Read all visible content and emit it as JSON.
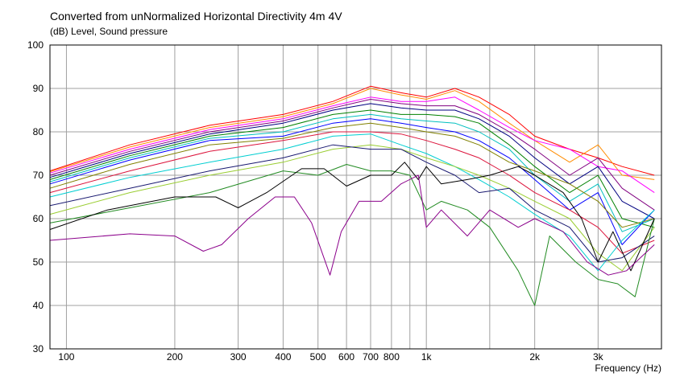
{
  "chart_data": {
    "type": "line",
    "title": "Converted from unNormalized Horizontal Directivity 4m 4V",
    "ylabel": "(dB)  Level, Sound pressure",
    "xlabel": "Frequency  (Hz)",
    "x_scale": "log",
    "xlim": [
      90,
      4500
    ],
    "ylim": [
      30,
      100
    ],
    "grid": true,
    "x_ticks": [
      {
        "value": 100,
        "label": "100"
      },
      {
        "value": 200,
        "label": "200"
      },
      {
        "value": 300,
        "label": "300"
      },
      {
        "value": 400,
        "label": "400"
      },
      {
        "value": 500,
        "label": "500"
      },
      {
        "value": 600,
        "label": "600"
      },
      {
        "value": 700,
        "label": "700"
      },
      {
        "value": 800,
        "label": "800"
      },
      {
        "value": 1000,
        "label": "1k"
      },
      {
        "value": 2000,
        "label": "2k"
      },
      {
        "value": 3000,
        "label": "3k"
      }
    ],
    "x_minor_grid": [
      900,
      1500
    ],
    "y_ticks": [
      30,
      40,
      50,
      60,
      70,
      80,
      90,
      100
    ],
    "series": [
      {
        "color": "#ff0000",
        "points": [
          [
            90,
            71
          ],
          [
            150,
            77
          ],
          [
            250,
            81.5
          ],
          [
            400,
            84
          ],
          [
            550,
            87
          ],
          [
            700,
            90.5
          ],
          [
            850,
            89
          ],
          [
            1000,
            88
          ],
          [
            1200,
            90
          ],
          [
            1400,
            88
          ],
          [
            1700,
            84
          ],
          [
            2000,
            79
          ],
          [
            2500,
            76
          ],
          [
            3000,
            74
          ],
          [
            3500,
            72
          ],
          [
            4300,
            70
          ]
        ]
      },
      {
        "color": "#ff8c00",
        "points": [
          [
            90,
            70.8
          ],
          [
            150,
            76.5
          ],
          [
            250,
            81
          ],
          [
            400,
            83.5
          ],
          [
            550,
            86.5
          ],
          [
            700,
            90
          ],
          [
            850,
            88.5
          ],
          [
            1000,
            87.5
          ],
          [
            1200,
            89.5
          ],
          [
            1400,
            87
          ],
          [
            1700,
            82
          ],
          [
            2000,
            78
          ],
          [
            2500,
            73
          ],
          [
            3000,
            77
          ],
          [
            3500,
            70
          ],
          [
            4300,
            69
          ]
        ]
      },
      {
        "color": "#ff00ff",
        "points": [
          [
            90,
            70.5
          ],
          [
            150,
            76
          ],
          [
            250,
            80.5
          ],
          [
            400,
            83
          ],
          [
            550,
            86
          ],
          [
            700,
            88
          ],
          [
            850,
            87
          ],
          [
            1000,
            87
          ],
          [
            1200,
            88
          ],
          [
            1400,
            85
          ],
          [
            1700,
            81
          ],
          [
            2000,
            78
          ],
          [
            2500,
            76
          ],
          [
            3000,
            72
          ],
          [
            3500,
            71
          ],
          [
            4300,
            66
          ]
        ]
      },
      {
        "color": "#800080",
        "points": [
          [
            90,
            70
          ],
          [
            150,
            75.5
          ],
          [
            250,
            80
          ],
          [
            400,
            82.5
          ],
          [
            550,
            85.5
          ],
          [
            700,
            87.5
          ],
          [
            850,
            86.5
          ],
          [
            1000,
            86
          ],
          [
            1200,
            86
          ],
          [
            1400,
            84
          ],
          [
            1700,
            80
          ],
          [
            2000,
            76
          ],
          [
            2500,
            70
          ],
          [
            3000,
            74
          ],
          [
            3500,
            67
          ],
          [
            4300,
            62
          ]
        ]
      },
      {
        "color": "#000080",
        "points": [
          [
            90,
            69.5
          ],
          [
            150,
            75
          ],
          [
            250,
            79.5
          ],
          [
            400,
            82
          ],
          [
            550,
            85
          ],
          [
            700,
            86.5
          ],
          [
            850,
            85.5
          ],
          [
            1000,
            85
          ],
          [
            1200,
            85
          ],
          [
            1400,
            83
          ],
          [
            1700,
            79
          ],
          [
            2000,
            74
          ],
          [
            2500,
            68
          ],
          [
            3000,
            72
          ],
          [
            3500,
            64
          ],
          [
            4300,
            60
          ]
        ]
      },
      {
        "color": "#008000",
        "points": [
          [
            90,
            69
          ],
          [
            150,
            74.5
          ],
          [
            250,
            79
          ],
          [
            400,
            81
          ],
          [
            550,
            84
          ],
          [
            700,
            85
          ],
          [
            850,
            84
          ],
          [
            1000,
            84
          ],
          [
            1200,
            83.5
          ],
          [
            1400,
            82
          ],
          [
            1700,
            77
          ],
          [
            2000,
            72
          ],
          [
            2500,
            66
          ],
          [
            3000,
            70
          ],
          [
            3500,
            60
          ],
          [
            4300,
            58
          ]
        ]
      },
      {
        "color": "#00bfbf",
        "points": [
          [
            90,
            68.5
          ],
          [
            150,
            74
          ],
          [
            250,
            78.5
          ],
          [
            400,
            80
          ],
          [
            550,
            83
          ],
          [
            700,
            84
          ],
          [
            850,
            83
          ],
          [
            1000,
            82.5
          ],
          [
            1200,
            82
          ],
          [
            1400,
            80
          ],
          [
            1700,
            76
          ],
          [
            2000,
            70
          ],
          [
            2500,
            64
          ],
          [
            3000,
            68
          ],
          [
            3500,
            57
          ],
          [
            4300,
            60
          ]
        ]
      },
      {
        "color": "#0000ff",
        "points": [
          [
            90,
            68
          ],
          [
            150,
            73.5
          ],
          [
            250,
            78
          ],
          [
            400,
            79
          ],
          [
            550,
            82
          ],
          [
            700,
            83
          ],
          [
            850,
            82
          ],
          [
            1000,
            81
          ],
          [
            1200,
            80
          ],
          [
            1400,
            78
          ],
          [
            1700,
            74
          ],
          [
            2000,
            69
          ],
          [
            2500,
            62
          ],
          [
            3000,
            66
          ],
          [
            3500,
            54
          ],
          [
            4300,
            62
          ]
        ]
      },
      {
        "color": "#808000",
        "points": [
          [
            90,
            67
          ],
          [
            150,
            72.5
          ],
          [
            250,
            77
          ],
          [
            400,
            78.5
          ],
          [
            550,
            81
          ],
          [
            700,
            82
          ],
          [
            850,
            81
          ],
          [
            1000,
            80
          ],
          [
            1200,
            79
          ],
          [
            1400,
            77
          ],
          [
            1700,
            73
          ],
          [
            2000,
            71
          ],
          [
            2500,
            68
          ],
          [
            3000,
            64
          ],
          [
            3500,
            58
          ],
          [
            4300,
            60
          ]
        ]
      },
      {
        "color": "#dc143c",
        "points": [
          [
            90,
            66
          ],
          [
            150,
            71
          ],
          [
            250,
            75.5
          ],
          [
            400,
            78
          ],
          [
            550,
            80
          ],
          [
            700,
            80
          ],
          [
            850,
            79.5
          ],
          [
            1000,
            78
          ],
          [
            1200,
            76
          ],
          [
            1400,
            74
          ],
          [
            1700,
            70
          ],
          [
            2000,
            66
          ],
          [
            2500,
            62
          ],
          [
            3000,
            58
          ],
          [
            3500,
            52
          ],
          [
            4300,
            55
          ]
        ]
      },
      {
        "color": "#00ced1",
        "points": [
          [
            90,
            65
          ],
          [
            150,
            69.5
          ],
          [
            250,
            73
          ],
          [
            400,
            76
          ],
          [
            550,
            79
          ],
          [
            700,
            79.5
          ],
          [
            850,
            77
          ],
          [
            1000,
            75
          ],
          [
            1200,
            72
          ],
          [
            1400,
            69
          ],
          [
            1700,
            65
          ],
          [
            2000,
            61
          ],
          [
            2500,
            56
          ],
          [
            3000,
            48
          ],
          [
            3500,
            55
          ],
          [
            4300,
            62
          ]
        ]
      },
      {
        "color": "#9acd32",
        "points": [
          [
            90,
            61
          ],
          [
            150,
            66
          ],
          [
            250,
            70
          ],
          [
            400,
            73
          ],
          [
            550,
            76
          ],
          [
            700,
            77
          ],
          [
            850,
            76
          ],
          [
            1000,
            74
          ],
          [
            1200,
            72
          ],
          [
            1400,
            70
          ],
          [
            1700,
            67
          ],
          [
            2000,
            64
          ],
          [
            2500,
            60
          ],
          [
            3000,
            52
          ],
          [
            3500,
            48
          ],
          [
            4300,
            58
          ]
        ]
      },
      {
        "color": "#191970",
        "points": [
          [
            90,
            63
          ],
          [
            150,
            67
          ],
          [
            250,
            71
          ],
          [
            400,
            74
          ],
          [
            550,
            77
          ],
          [
            700,
            76
          ],
          [
            850,
            76
          ],
          [
            1000,
            73
          ],
          [
            1200,
            70
          ],
          [
            1400,
            66
          ],
          [
            1700,
            67
          ],
          [
            2000,
            62
          ],
          [
            2500,
            58
          ],
          [
            3000,
            50
          ],
          [
            3500,
            51
          ],
          [
            4300,
            56
          ]
        ]
      },
      {
        "color": "#228b22",
        "points": [
          [
            90,
            59
          ],
          [
            150,
            62.5
          ],
          [
            250,
            66
          ],
          [
            400,
            71
          ],
          [
            500,
            70
          ],
          [
            600,
            72.5
          ],
          [
            700,
            71
          ],
          [
            800,
            71
          ],
          [
            900,
            70
          ],
          [
            1000,
            62
          ],
          [
            1100,
            64
          ],
          [
            1300,
            62
          ],
          [
            1500,
            58
          ],
          [
            1800,
            48
          ],
          [
            2000,
            40
          ],
          [
            2200,
            56
          ],
          [
            2600,
            50
          ],
          [
            3000,
            46
          ],
          [
            3400,
            45
          ],
          [
            3800,
            42
          ],
          [
            4300,
            60
          ]
        ]
      },
      {
        "color": "#000000",
        "points": [
          [
            90,
            57.5
          ],
          [
            130,
            62
          ],
          [
            200,
            65
          ],
          [
            260,
            65
          ],
          [
            300,
            62.5
          ],
          [
            360,
            66
          ],
          [
            450,
            71.5
          ],
          [
            520,
            71.5
          ],
          [
            600,
            67.5
          ],
          [
            700,
            70
          ],
          [
            800,
            70
          ],
          [
            870,
            73
          ],
          [
            950,
            69
          ],
          [
            1000,
            72
          ],
          [
            1100,
            68
          ],
          [
            1300,
            69
          ],
          [
            1500,
            70
          ],
          [
            1800,
            72
          ],
          [
            2000,
            70
          ],
          [
            2400,
            66
          ],
          [
            2700,
            60
          ],
          [
            3000,
            50
          ],
          [
            3300,
            57
          ],
          [
            3700,
            48
          ],
          [
            4300,
            60
          ]
        ]
      },
      {
        "color": "#8b008b",
        "points": [
          [
            90,
            55
          ],
          [
            150,
            56.5
          ],
          [
            200,
            56
          ],
          [
            240,
            52.5
          ],
          [
            270,
            54
          ],
          [
            320,
            60
          ],
          [
            380,
            65
          ],
          [
            430,
            65
          ],
          [
            480,
            59
          ],
          [
            540,
            47
          ],
          [
            580,
            57
          ],
          [
            650,
            64
          ],
          [
            750,
            64
          ],
          [
            850,
            68
          ],
          [
            950,
            70
          ],
          [
            1000,
            58
          ],
          [
            1100,
            62
          ],
          [
            1300,
            56
          ],
          [
            1500,
            62
          ],
          [
            1800,
            58
          ],
          [
            2000,
            60
          ],
          [
            2400,
            57
          ],
          [
            2800,
            50
          ],
          [
            3200,
            47
          ],
          [
            3600,
            48
          ],
          [
            4300,
            54
          ]
        ]
      }
    ]
  }
}
